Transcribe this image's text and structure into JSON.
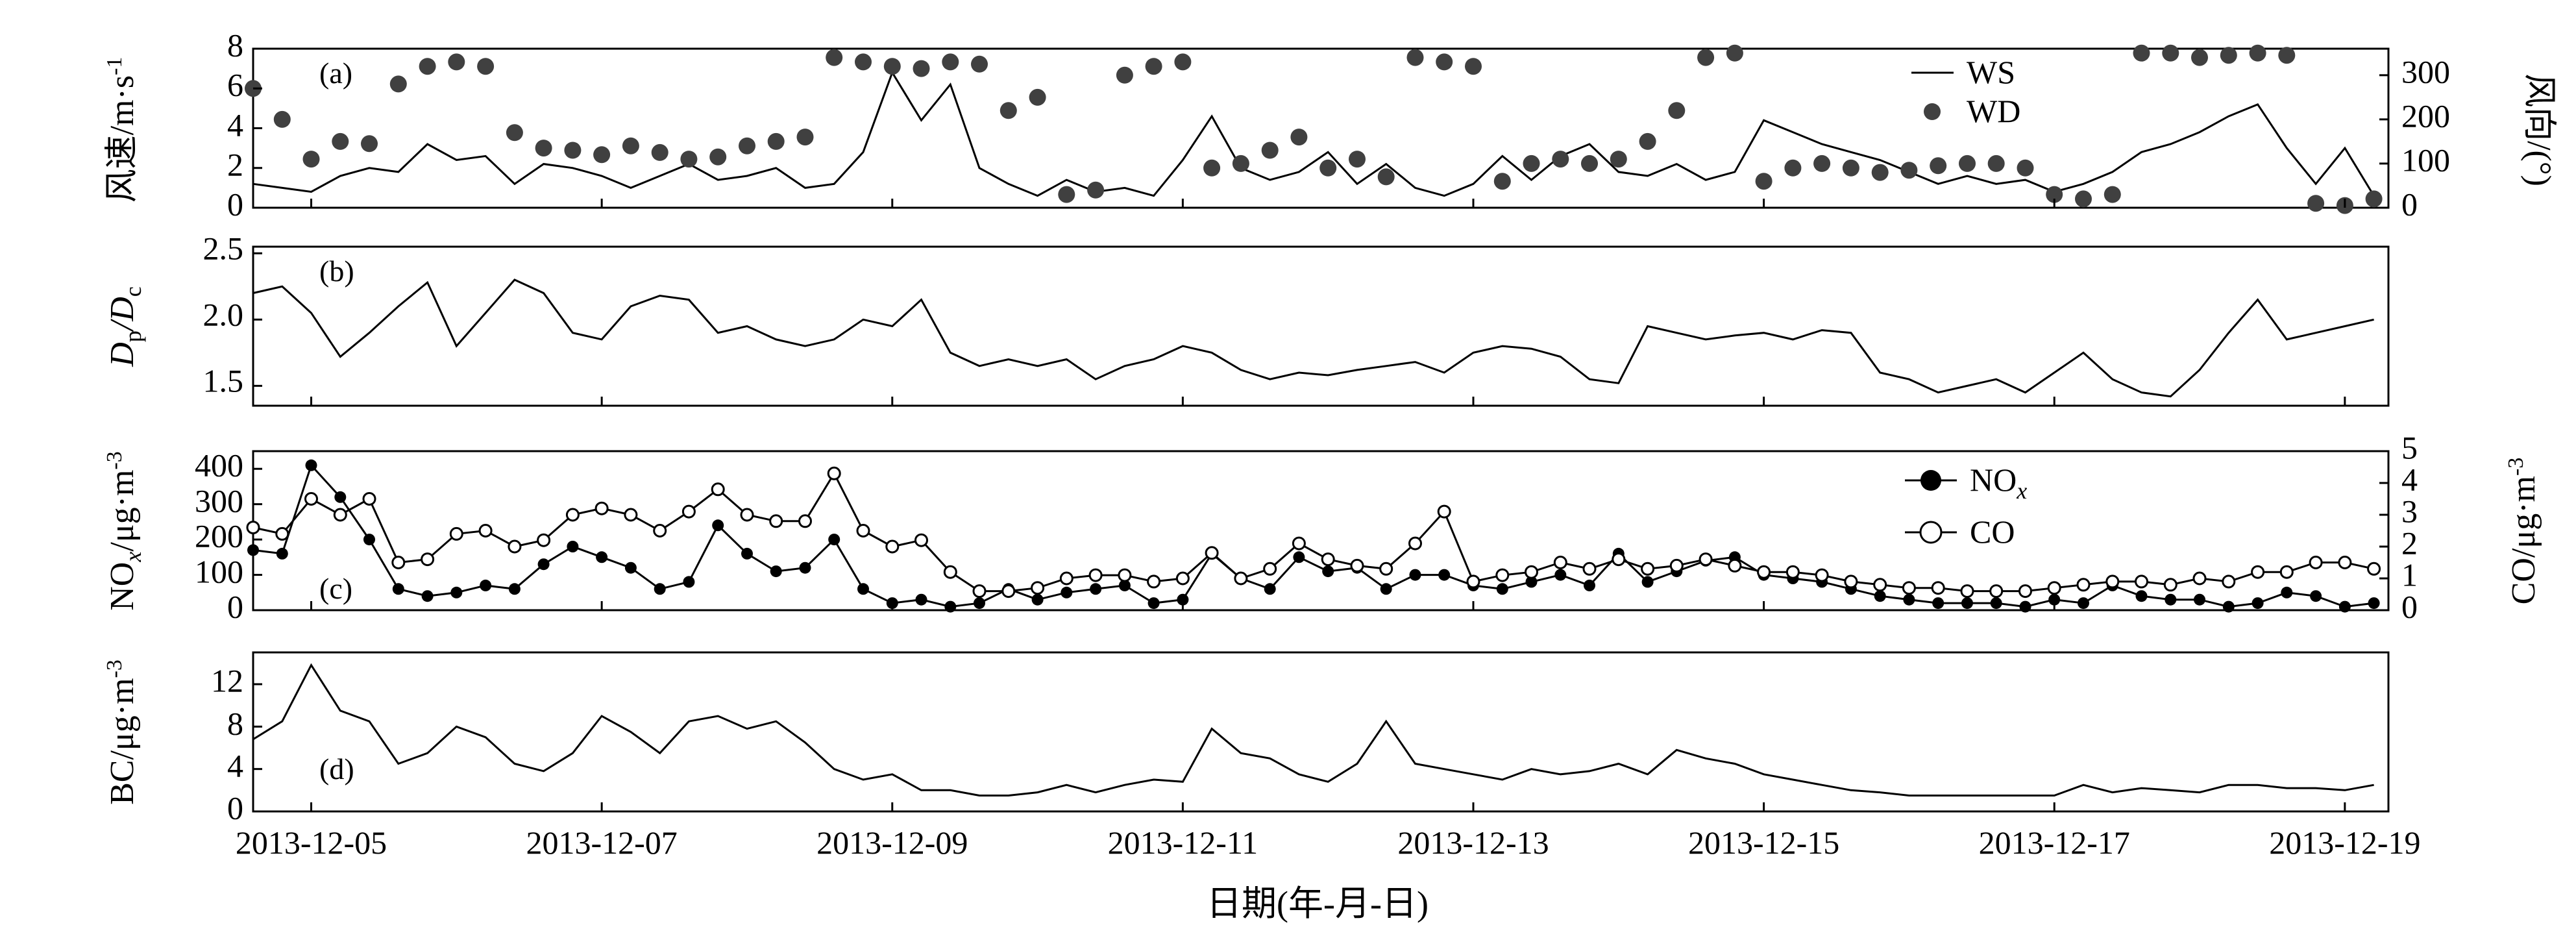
{
  "x_axis": {
    "label": "日期(年-月-日)",
    "ticks": [
      "2013-12-05",
      "2013-12-07",
      "2013-12-09",
      "2013-12-11",
      "2013-12-13",
      "2013-12-15",
      "2013-12-17",
      "2013-12-19"
    ]
  },
  "panels": {
    "a": {
      "tag": "(a)",
      "ylabel_left": "风速/m·s",
      "ylabel_left_sup": "-1",
      "ylabel_right": "风向/(°)",
      "yticks_left": [
        "0",
        "2",
        "4",
        "6",
        "8"
      ],
      "yticks_right": [
        "0",
        "100",
        "200",
        "300"
      ],
      "legend": {
        "ws": "WS",
        "wd": "WD"
      }
    },
    "b": {
      "tag": "(b)",
      "ylabel_p1": "D",
      "ylabel_p1_sub": "p",
      "ylabel_slash": "/D",
      "ylabel_p2_sub": "c",
      "yticks": [
        "1.5",
        "2.0",
        "2.5"
      ]
    },
    "c": {
      "tag": "(c)",
      "ylabel_left_a": "NO",
      "ylabel_left_sub": "x",
      "ylabel_left_b": "/μg·m",
      "ylabel_left_sup": "-3",
      "ylabel_right": "CO/μg·m",
      "ylabel_right_sup": "-3",
      "yticks_left": [
        "0",
        "100",
        "200",
        "300",
        "400"
      ],
      "yticks_right": [
        "0",
        "1",
        "2",
        "3",
        "4",
        "5"
      ],
      "legend": {
        "nox_a": "NO",
        "nox_sub": "x",
        "co": "CO"
      }
    },
    "d": {
      "tag": "(d)",
      "ylabel": "BC/μg·m",
      "ylabel_sup": "-3",
      "yticks": [
        "0",
        "4",
        "8",
        "12"
      ]
    }
  },
  "colors": {
    "line": "#000000",
    "wd_marker": "#404040",
    "nox_marker": "#000000",
    "co_marker_face": "#ffffff"
  },
  "chart_data": [
    {
      "type": "line",
      "panel": "a",
      "x_unit": "day of December 2013",
      "xlim": [
        4.6,
        19.3
      ],
      "ylim_left": [
        0,
        8
      ],
      "ylim_right": [
        0,
        360
      ],
      "series": [
        {
          "name": "WS",
          "axis": "left",
          "style": "line",
          "x": [
            4.6,
            4.8,
            5.0,
            5.2,
            5.4,
            5.6,
            5.8,
            6.0,
            6.2,
            6.4,
            6.6,
            6.8,
            7.0,
            7.2,
            7.4,
            7.6,
            7.8,
            8.0,
            8.2,
            8.4,
            8.6,
            8.8,
            9.0,
            9.2,
            9.4,
            9.6,
            9.8,
            10.0,
            10.2,
            10.4,
            10.6,
            10.8,
            11.0,
            11.2,
            11.4,
            11.6,
            11.8,
            12.0,
            12.2,
            12.4,
            12.6,
            12.8,
            13.0,
            13.2,
            13.4,
            13.6,
            13.8,
            14.0,
            14.2,
            14.4,
            14.6,
            14.8,
            15.0,
            15.2,
            15.4,
            15.6,
            15.8,
            16.0,
            16.2,
            16.4,
            16.6,
            16.8,
            17.0,
            17.2,
            17.4,
            17.6,
            17.8,
            18.0,
            18.2,
            18.4,
            18.6,
            18.8,
            19.0,
            19.2
          ],
          "values": [
            1.2,
            1.0,
            0.8,
            1.6,
            2.0,
            1.8,
            3.2,
            2.4,
            2.6,
            1.2,
            2.2,
            2.0,
            1.6,
            1.0,
            1.6,
            2.2,
            1.4,
            1.6,
            2.0,
            1.0,
            1.2,
            2.8,
            6.8,
            4.4,
            6.2,
            2.0,
            1.2,
            0.6,
            1.4,
            0.8,
            1.0,
            0.6,
            2.4,
            4.6,
            2.0,
            1.4,
            1.8,
            2.8,
            1.2,
            2.2,
            1.0,
            0.6,
            1.2,
            2.6,
            1.4,
            2.6,
            3.2,
            1.8,
            1.6,
            2.2,
            1.4,
            1.8,
            4.4,
            3.8,
            3.2,
            2.8,
            2.4,
            1.8,
            1.2,
            1.6,
            1.2,
            1.4,
            0.8,
            1.2,
            1.8,
            2.8,
            3.2,
            3.8,
            4.6,
            5.2,
            3.0,
            1.2,
            3.0,
            0.6
          ]
        },
        {
          "name": "WD",
          "axis": "right",
          "style": "marker",
          "x": [
            4.6,
            4.8,
            5.0,
            5.2,
            5.4,
            5.6,
            5.8,
            6.0,
            6.2,
            6.4,
            6.6,
            6.8,
            7.0,
            7.2,
            7.4,
            7.6,
            7.8,
            8.0,
            8.2,
            8.4,
            8.6,
            8.8,
            9.0,
            9.2,
            9.4,
            9.6,
            9.8,
            10.0,
            10.2,
            10.4,
            10.6,
            10.8,
            11.0,
            11.2,
            11.4,
            11.6,
            11.8,
            12.0,
            12.2,
            12.4,
            12.6,
            12.8,
            13.0,
            13.2,
            13.4,
            13.6,
            13.8,
            14.0,
            14.2,
            14.4,
            14.6,
            14.8,
            15.0,
            15.2,
            15.4,
            15.6,
            15.8,
            16.0,
            16.2,
            16.4,
            16.6,
            16.8,
            17.0,
            17.2,
            17.4,
            17.6,
            17.8,
            18.0,
            18.2,
            18.4,
            18.6,
            18.8,
            19.0,
            19.2
          ],
          "values": [
            270,
            200,
            110,
            150,
            145,
            280,
            320,
            330,
            320,
            170,
            135,
            130,
            120,
            140,
            125,
            110,
            115,
            140,
            150,
            160,
            340,
            330,
            320,
            315,
            330,
            325,
            220,
            250,
            30,
            40,
            300,
            320,
            330,
            90,
            100,
            130,
            160,
            90,
            110,
            70,
            340,
            330,
            320,
            60,
            100,
            110,
            100,
            110,
            150,
            220,
            340,
            350,
            60,
            90,
            100,
            90,
            80,
            85,
            95,
            100,
            100,
            90,
            30,
            20,
            30,
            350,
            350,
            340,
            345,
            350,
            345,
            10,
            5,
            20
          ]
        }
      ]
    },
    {
      "type": "line",
      "panel": "b",
      "x_unit": "day of December 2013",
      "xlim": [
        4.6,
        19.3
      ],
      "ylim": [
        1.35,
        2.55
      ],
      "series": [
        {
          "name": "",
          "x": [
            4.6,
            4.8,
            5.0,
            5.2,
            5.4,
            5.6,
            5.8,
            6.0,
            6.2,
            6.4,
            6.6,
            6.8,
            7.0,
            7.2,
            7.4,
            7.6,
            7.8,
            8.0,
            8.2,
            8.4,
            8.6,
            8.8,
            9.0,
            9.2,
            9.4,
            9.6,
            9.8,
            10.0,
            10.2,
            10.4,
            10.6,
            10.8,
            11.0,
            11.2,
            11.4,
            11.6,
            11.8,
            12.0,
            12.2,
            12.4,
            12.6,
            12.8,
            13.0,
            13.2,
            13.4,
            13.6,
            13.8,
            14.0,
            14.2,
            14.4,
            14.6,
            14.8,
            15.0,
            15.2,
            15.4,
            15.6,
            15.8,
            16.0,
            16.2,
            16.4,
            16.6,
            16.8,
            17.0,
            17.2,
            17.4,
            17.6,
            17.8,
            18.0,
            18.2,
            18.4,
            18.6,
            18.8,
            19.0,
            19.2
          ],
          "values": [
            2.2,
            2.25,
            2.05,
            1.72,
            1.9,
            2.1,
            2.28,
            1.8,
            2.05,
            2.3,
            2.2,
            1.9,
            1.85,
            2.1,
            2.18,
            2.15,
            1.9,
            1.95,
            1.85,
            1.8,
            1.85,
            2.0,
            1.95,
            2.15,
            1.75,
            1.65,
            1.7,
            1.65,
            1.7,
            1.55,
            1.65,
            1.7,
            1.8,
            1.75,
            1.62,
            1.55,
            1.6,
            1.58,
            1.62,
            1.65,
            1.68,
            1.6,
            1.75,
            1.8,
            1.78,
            1.72,
            1.55,
            1.52,
            1.95,
            1.9,
            1.85,
            1.88,
            1.9,
            1.85,
            1.92,
            1.9,
            1.6,
            1.55,
            1.45,
            1.5,
            1.55,
            1.45,
            1.6,
            1.75,
            1.55,
            1.45,
            1.42,
            1.62,
            1.9,
            2.15,
            1.85,
            1.9,
            1.95,
            2.0
          ]
        }
      ]
    },
    {
      "type": "line",
      "panel": "c",
      "x_unit": "day of December 2013",
      "xlim": [
        4.6,
        19.3
      ],
      "ylim_left": [
        0,
        450
      ],
      "ylim_right": [
        0,
        5
      ],
      "series": [
        {
          "name": "NOx",
          "axis": "left",
          "style": "line+filled-marker",
          "x": [
            4.6,
            4.8,
            5.0,
            5.2,
            5.4,
            5.6,
            5.8,
            6.0,
            6.2,
            6.4,
            6.6,
            6.8,
            7.0,
            7.2,
            7.4,
            7.6,
            7.8,
            8.0,
            8.2,
            8.4,
            8.6,
            8.8,
            9.0,
            9.2,
            9.4,
            9.6,
            9.8,
            10.0,
            10.2,
            10.4,
            10.6,
            10.8,
            11.0,
            11.2,
            11.4,
            11.6,
            11.8,
            12.0,
            12.2,
            12.4,
            12.6,
            12.8,
            13.0,
            13.2,
            13.4,
            13.6,
            13.8,
            14.0,
            14.2,
            14.4,
            14.6,
            14.8,
            15.0,
            15.2,
            15.4,
            15.6,
            15.8,
            16.0,
            16.2,
            16.4,
            16.6,
            16.8,
            17.0,
            17.2,
            17.4,
            17.6,
            17.8,
            18.0,
            18.2,
            18.4,
            18.6,
            18.8,
            19.0,
            19.2
          ],
          "values": [
            170,
            160,
            410,
            320,
            200,
            60,
            40,
            50,
            70,
            60,
            130,
            180,
            150,
            120,
            60,
            80,
            240,
            160,
            110,
            120,
            200,
            60,
            20,
            30,
            10,
            20,
            60,
            30,
            50,
            60,
            70,
            20,
            30,
            160,
            90,
            60,
            150,
            110,
            120,
            60,
            100,
            100,
            70,
            60,
            80,
            100,
            70,
            160,
            80,
            110,
            140,
            150,
            100,
            90,
            80,
            60,
            40,
            30,
            20,
            20,
            20,
            10,
            30,
            20,
            70,
            40,
            30,
            30,
            10,
            20,
            50,
            40,
            10,
            20
          ]
        },
        {
          "name": "CO",
          "axis": "right",
          "style": "line+open-marker",
          "x": [
            4.6,
            4.8,
            5.0,
            5.2,
            5.4,
            5.6,
            5.8,
            6.0,
            6.2,
            6.4,
            6.6,
            6.8,
            7.0,
            7.2,
            7.4,
            7.6,
            7.8,
            8.0,
            8.2,
            8.4,
            8.6,
            8.8,
            9.0,
            9.2,
            9.4,
            9.6,
            9.8,
            10.0,
            10.2,
            10.4,
            10.6,
            10.8,
            11.0,
            11.2,
            11.4,
            11.6,
            11.8,
            12.0,
            12.2,
            12.4,
            12.6,
            12.8,
            13.0,
            13.2,
            13.4,
            13.6,
            13.8,
            14.0,
            14.2,
            14.4,
            14.6,
            14.8,
            15.0,
            15.2,
            15.4,
            15.6,
            15.8,
            16.0,
            16.2,
            16.4,
            16.6,
            16.8,
            17.0,
            17.2,
            17.4,
            17.6,
            17.8,
            18.0,
            18.2,
            18.4,
            18.6,
            18.8,
            19.0,
            19.2
          ],
          "values": [
            2.6,
            2.4,
            3.5,
            3.0,
            3.5,
            1.5,
            1.6,
            2.4,
            2.5,
            2.0,
            2.2,
            3.0,
            3.2,
            3.0,
            2.5,
            3.1,
            3.8,
            3.0,
            2.8,
            2.8,
            4.3,
            2.5,
            2.0,
            2.2,
            1.2,
            0.6,
            0.6,
            0.7,
            1.0,
            1.1,
            1.1,
            0.9,
            1.0,
            1.8,
            1.0,
            1.3,
            2.1,
            1.6,
            1.4,
            1.3,
            2.1,
            3.1,
            0.9,
            1.1,
            1.2,
            1.5,
            1.3,
            1.6,
            1.3,
            1.4,
            1.6,
            1.4,
            1.2,
            1.2,
            1.1,
            0.9,
            0.8,
            0.7,
            0.7,
            0.6,
            0.6,
            0.6,
            0.7,
            0.8,
            0.9,
            0.9,
            0.8,
            1.0,
            0.9,
            1.2,
            1.2,
            1.5,
            1.5,
            1.3
          ]
        }
      ]
    },
    {
      "type": "line",
      "panel": "d",
      "x_unit": "day of December 2013",
      "xlim": [
        4.6,
        19.3
      ],
      "ylim": [
        0,
        15
      ],
      "series": [
        {
          "name": "",
          "x": [
            4.6,
            4.8,
            5.0,
            5.2,
            5.4,
            5.6,
            5.8,
            6.0,
            6.2,
            6.4,
            6.6,
            6.8,
            7.0,
            7.2,
            7.4,
            7.6,
            7.8,
            8.0,
            8.2,
            8.4,
            8.6,
            8.8,
            9.0,
            9.2,
            9.4,
            9.6,
            9.8,
            10.0,
            10.2,
            10.4,
            10.6,
            10.8,
            11.0,
            11.2,
            11.4,
            11.6,
            11.8,
            12.0,
            12.2,
            12.4,
            12.6,
            12.8,
            13.0,
            13.2,
            13.4,
            13.6,
            13.8,
            14.0,
            14.2,
            14.4,
            14.6,
            14.8,
            15.0,
            15.2,
            15.4,
            15.6,
            15.8,
            16.0,
            16.2,
            16.4,
            16.6,
            16.8,
            17.0,
            17.2,
            17.4,
            17.6,
            17.8,
            18.0,
            18.2,
            18.4,
            18.6,
            18.8,
            19.0,
            19.2
          ],
          "values": [
            6.8,
            8.5,
            13.8,
            9.5,
            8.5,
            4.5,
            5.5,
            8.0,
            7.0,
            4.5,
            3.8,
            5.5,
            9.0,
            7.5,
            5.5,
            8.5,
            9.0,
            7.8,
            8.5,
            6.5,
            4.0,
            3.0,
            3.5,
            2.0,
            2.0,
            1.5,
            1.5,
            1.8,
            2.5,
            1.8,
            2.5,
            3.0,
            2.8,
            7.8,
            5.5,
            5.0,
            3.5,
            2.8,
            4.5,
            8.5,
            4.5,
            4.0,
            3.5,
            3.0,
            4.0,
            3.5,
            3.8,
            4.5,
            3.5,
            5.8,
            5.0,
            4.5,
            3.5,
            3.0,
            2.5,
            2.0,
            1.8,
            1.5,
            1.5,
            1.5,
            1.5,
            1.5,
            1.5,
            2.5,
            1.8,
            2.2,
            2.0,
            1.8,
            2.5,
            2.5,
            2.2,
            2.2,
            2.0,
            2.5
          ]
        }
      ]
    }
  ]
}
